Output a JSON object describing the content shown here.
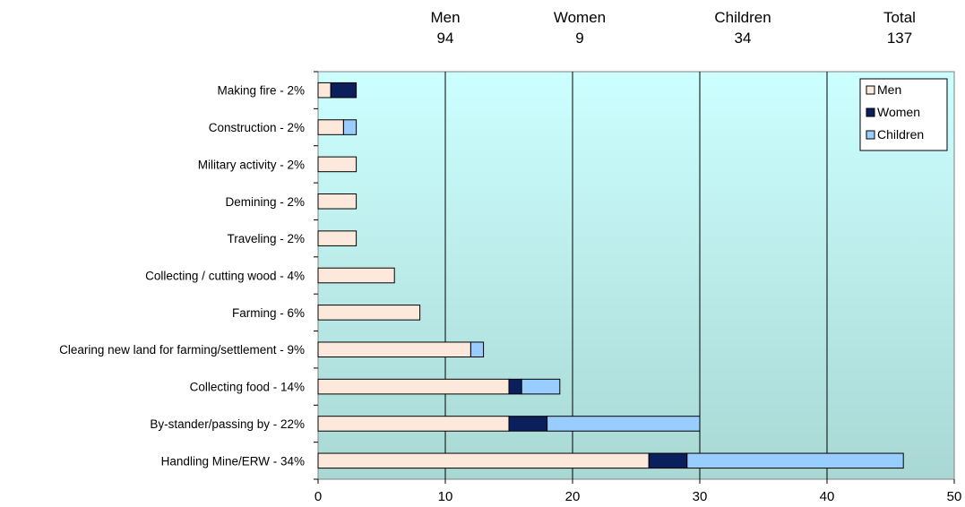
{
  "summary": [
    {
      "label": "Men",
      "value": "94"
    },
    {
      "label": "Women",
      "value": "9"
    },
    {
      "label": "Children",
      "value": "34"
    },
    {
      "label": "Total",
      "value": "137"
    }
  ],
  "colors": {
    "men": "#fce9dc",
    "women": "#0a1f5c",
    "children": "#99ccff",
    "plot_top": "#ccffff",
    "plot_bottom": "#a9d8d4"
  },
  "chart_data": {
    "type": "bar",
    "orientation": "horizontal",
    "stacked": true,
    "categories": [
      "Making fire - 2%",
      "Construction - 2%",
      "Military activity - 2%",
      "Demining - 2%",
      "Traveling - 2%",
      "Collecting / cutting wood - 4%",
      "Farming - 6%",
      "Clearing new land for farming/settlement - 9%",
      "Collecting food - 14%",
      "By-stander/passing by - 22%",
      "Handling Mine/ERW - 34%"
    ],
    "series": [
      {
        "name": "Men",
        "values": [
          1,
          2,
          3,
          3,
          3,
          6,
          8,
          12,
          15,
          15,
          26
        ]
      },
      {
        "name": "Women",
        "values": [
          2,
          0,
          0,
          0,
          0,
          0,
          0,
          0,
          1,
          3,
          3
        ]
      },
      {
        "name": "Children",
        "values": [
          0,
          1,
          0,
          0,
          0,
          0,
          0,
          1,
          3,
          12,
          17
        ]
      }
    ],
    "xlim": [
      0,
      50
    ],
    "xticks": [
      "0",
      "10",
      "20",
      "30",
      "40",
      "50"
    ],
    "grid": "vertical",
    "legend_position": "top-right"
  }
}
